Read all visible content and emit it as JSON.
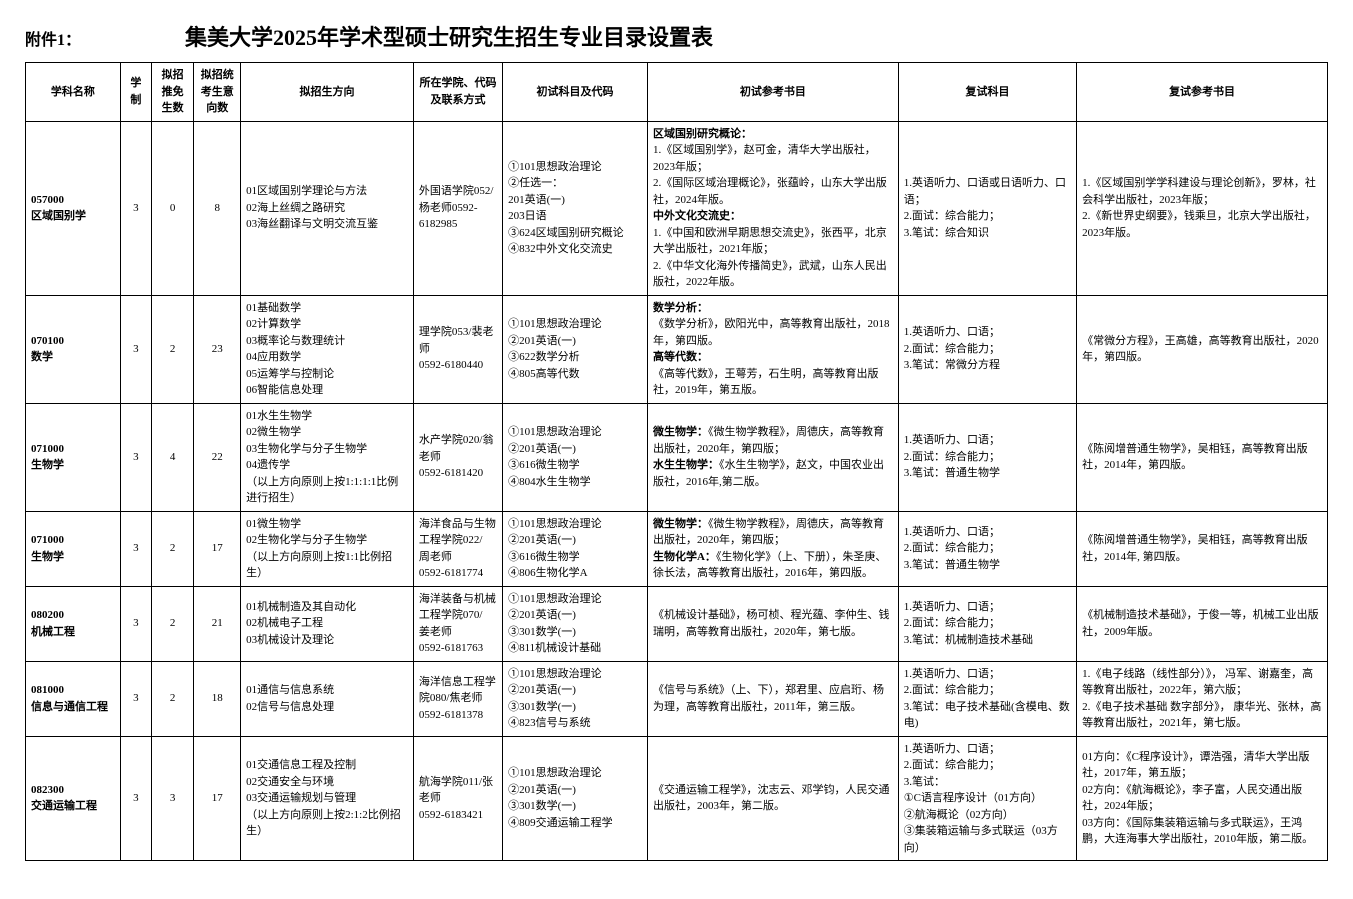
{
  "header": {
    "attachment": "附件1：",
    "title": "集美大学2025年学术型硕士研究生招生专业目录设置表"
  },
  "columns": {
    "c0": "学科名称",
    "c1": "学制",
    "c2": "拟招推免生数",
    "c3": "拟招统考生意向数",
    "c4": "拟招生方向",
    "c5": "所在学院、代码及联系方式",
    "c6": "初试科目及代码",
    "c7": "初试参考书目",
    "c8": "复试科目",
    "c9": "复试参考书目"
  },
  "rows": [
    {
      "name_code": "057000",
      "name": "区域国别学",
      "xuezhi": "3",
      "tuimian": "0",
      "tongkao": "8",
      "fangxiang": "01区域国别学理论与方法\n02海上丝绸之路研究\n03海丝翻译与文明交流互鉴",
      "xueyuan": "外国语学院052/杨老师0592-6182985",
      "chushi": "①101思想政治理论\n②任选一：\n201英语(一)\n203日语\n③624区域国别研究概论\n④832中外文化交流史",
      "chushi_ref_title1": "区域国别研究概论：",
      "chushi_ref_body1": "1.《区域国别学》，赵可金，清华大学出版社，2023年版；\n2.《国际区域治理概论》，张蕴岭，山东大学出版社，2024年版。",
      "chushi_ref_title2": "中外文化交流史：",
      "chushi_ref_body2": "1.《中国和欧洲早期思想交流史》，张西平，北京大学出版社，2021年版；\n2.《中华文化海外传播简史》，武斌，山东人民出版社，2022年版。",
      "fushi": "1.英语听力、口语或日语听力、口语；\n2.面试：综合能力；\n3.笔试：综合知识",
      "fushi_ref": "1.《区域国别学学科建设与理论创新》，罗林，社会科学出版社，2023年版；\n2.《新世界史纲要》，钱乘旦，北京大学出版社，2023年版。"
    },
    {
      "name_code": "070100",
      "name": "数学",
      "xuezhi": "3",
      "tuimian": "2",
      "tongkao": "23",
      "fangxiang": "01基础数学\n02计算数学\n03概率论与数理统计\n04应用数学\n05运筹学与控制论\n06智能信息处理",
      "xueyuan": "理学院053/裴老师\n0592-6180440",
      "chushi": "①101思想政治理论\n②201英语(一)\n③622数学分析\n④805高等代数",
      "chushi_ref_title1": "数学分析：",
      "chushi_ref_body1": "《数学分析》，欧阳光中，高等教育出版社，2018年，第四版。",
      "chushi_ref_title2": "高等代数：",
      "chushi_ref_body2": "《高等代数》，王萼芳，石生明，高等教育出版社，2019年，第五版。",
      "fushi": "1.英语听力、口语；\n2.面试：综合能力；\n3.笔试：常微分方程",
      "fushi_ref": "《常微分方程》，王高雄，高等教育出版社，2020年，第四版。"
    },
    {
      "name_code": "071000",
      "name": "生物学",
      "xuezhi": "3",
      "tuimian": "4",
      "tongkao": "22",
      "fangxiang": "01水生生物学\n02微生物学\n03生物化学与分子生物学\n04遗传学\n（以上方向原则上按1:1:1:1比例进行招生）",
      "xueyuan": "水产学院020/翁老师\n0592-6181420",
      "chushi": "①101思想政治理论\n②201英语(一)\n③616微生物学\n④804水生生物学",
      "chushi_ref_title1": "微生物学：",
      "chushi_ref_body1": "《微生物学教程》，周德庆，高等教育出版社，2020年，第四版；",
      "chushi_ref_title2": "水生生物学：",
      "chushi_ref_body2": "《水生生物学》，赵文，中国农业出版社，2016年,第二版。",
      "fushi": "1.英语听力、口语；\n2.面试：综合能力；\n3.笔试：普通生物学",
      "fushi_ref": "《陈阅增普通生物学》，吴相钰，高等教育出版社，2014年，第四版。"
    },
    {
      "name_code2": "071000",
      "name2": "生物学",
      "xuezhi": "3",
      "tuimian": "2",
      "tongkao": "17",
      "fangxiang": "01微生物学\n02生物化学与分子生物学\n（以上方向原则上按1:1比例招生）",
      "xueyuan": "海洋食品与生物工程学院022/\n周老师\n0592-6181774",
      "chushi": "①101思想政治理论\n②201英语(一)\n③616微生物学\n④806生物化学A",
      "chushi_ref_title1": "微生物学：",
      "chushi_ref_body1": "《微生物学教程》，周德庆，高等教育出版社，2020年，第四版；",
      "chushi_ref_title2": "生物化学A：",
      "chushi_ref_body2": "《生物化学》（上、下册），朱圣庚、徐长法，高等教育出版社，2016年，第四版。",
      "fushi": "1.英语听力、口语；\n2.面试：综合能力；\n3.笔试：普通生物学",
      "fushi_ref": "《陈阅增普通生物学》，吴相钰，高等教育出版社，2014年, 第四版。"
    },
    {
      "name_code": "080200",
      "name": "机械工程",
      "xuezhi": "3",
      "tuimian": "2",
      "tongkao": "21",
      "fangxiang": "01机械制造及其自动化\n02机械电子工程\n03机械设计及理论",
      "xueyuan": "海洋装备与机械工程学院070/\n姜老师\n0592-6181763",
      "chushi": "①101思想政治理论\n②201英语(一)\n③301数学(一)\n④811机械设计基础",
      "chushi_ref": "《机械设计基础》，杨可桢、程光蕴、李仲生、钱瑞明，高等教育出版社，2020年，第七版。",
      "fushi": "1.英语听力、口语；\n2.面试：综合能力；\n3.笔试：机械制造技术基础",
      "fushi_ref": "《机械制造技术基础》，于俊一等，机械工业出版社，2009年版。"
    },
    {
      "name_code": "081000",
      "name": "信息与通信工程",
      "xuezhi": "3",
      "tuimian": "2",
      "tongkao": "18",
      "fangxiang": "01通信与信息系统\n02信号与信息处理",
      "xueyuan": "海洋信息工程学院080/焦老师 0592-6181378",
      "chushi": "①101思想政治理论\n②201英语(一)\n③301数学(一)\n④823信号与系统",
      "chushi_ref": "《信号与系统》（上、下），郑君里、应启珩、杨为理，高等教育出版社，2011年，第三版。",
      "fushi": "1.英语听力、口语；\n2.面试：综合能力；\n3.笔试：电子技术基础(含模电、数电)",
      "fushi_ref": "1.《电子线路（线性部分）》， 冯军、谢嘉奎，高等教育出版社，2022年，第六版；\n2.《电子技术基础 数字部分》， 康华光、张林，高等教育出版社，2021年，第七版。"
    },
    {
      "name_code": "082300",
      "name": "交通运输工程",
      "xuezhi": "3",
      "tuimian": "3",
      "tongkao": "17",
      "fangxiang": "01交通信息工程及控制\n02交通安全与环境\n03交通运输规划与管理\n（以上方向原则上按2:1:2比例招生）",
      "xueyuan": "航海学院011/张老师\n0592-6183421",
      "chushi": "①101思想政治理论\n②201英语(一)\n③301数学(一)\n④809交通运输工程学",
      "chushi_ref": "《交通运输工程学》，沈志云、邓学钧，人民交通出版社，2003年，第二版。",
      "fushi": "1.英语听力、口语；\n2.面试：综合能力；\n3.笔试：\n①C语言程序设计（01方向）\n②航海概论（02方向）\n③集装箱运输与多式联运（03方向）",
      "fushi_ref": "01方向：《C程序设计》，谭浩强，清华大学出版社，2017年，第五版；\n02方向：《航海概论》，李子富，人民交通出版社，2024年版；\n03方向：《国际集装箱运输与多式联运》，王鸿鹏，大连海事大学出版社，2010年版，第二版。"
    }
  ]
}
